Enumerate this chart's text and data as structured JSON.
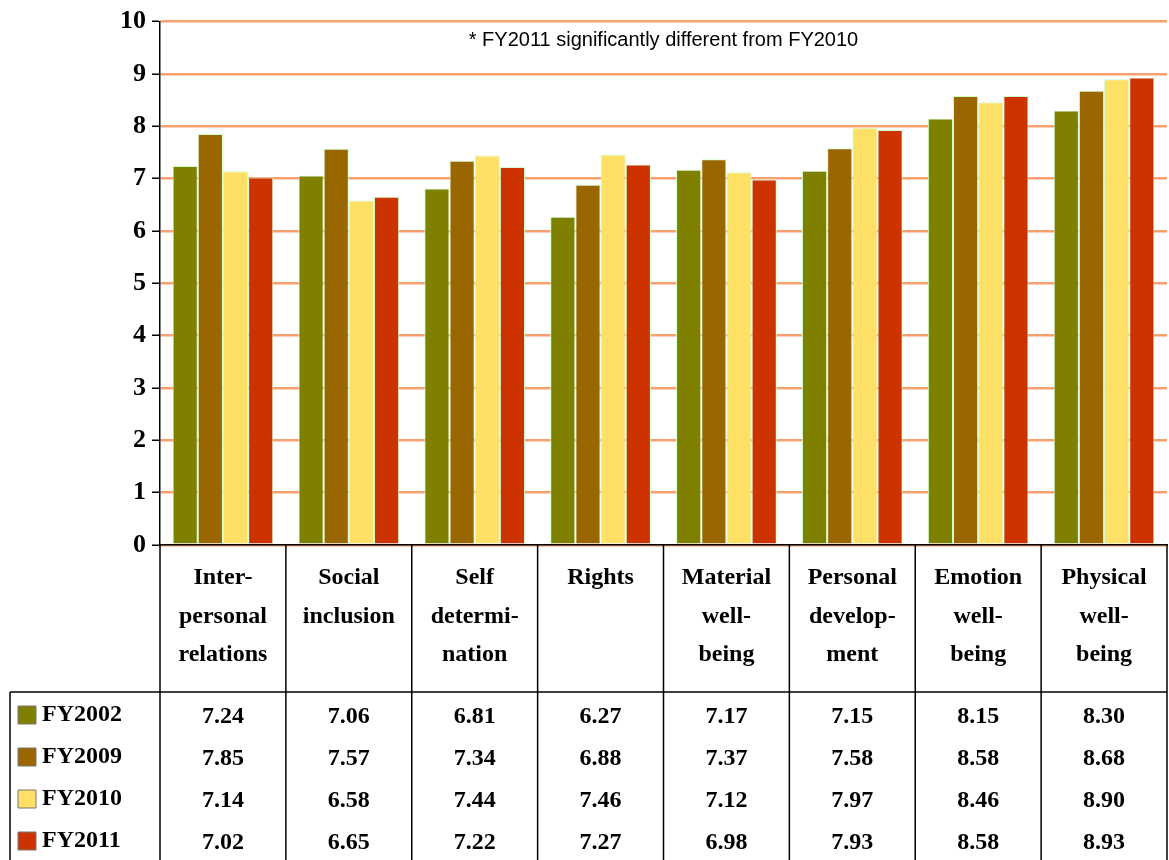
{
  "chart_data": {
    "type": "bar",
    "categories": [
      "Inter-\npersonal\nrelations",
      "Social\ninclusion",
      "Self\ndetermi-\nnation",
      "Rights",
      "Material\nwell-\nbeing",
      "Personal\ndevelop-\nment",
      "Emotion\nwell-\nbeing",
      "Physical\nwell-\nbeing"
    ],
    "series": [
      {
        "name": "FY2002",
        "color": "#808000",
        "values": [
          7.24,
          7.06,
          6.81,
          6.27,
          7.17,
          7.15,
          8.15,
          8.3
        ],
        "value_labels": [
          "7.24",
          "7.06",
          "6.81",
          "6.27",
          "7.17",
          "7.15",
          "8.15",
          "8.30"
        ]
      },
      {
        "name": "FY2009",
        "color": "#996600",
        "values": [
          7.85,
          7.57,
          7.34,
          6.88,
          7.37,
          7.58,
          8.58,
          8.68
        ],
        "value_labels": [
          "7.85",
          "7.57",
          "7.34",
          "6.88",
          "7.37",
          "7.58",
          "8.58",
          "8.68"
        ]
      },
      {
        "name": "FY2010",
        "color": "#ffe066",
        "values": [
          7.14,
          6.58,
          7.44,
          7.46,
          7.12,
          7.97,
          8.46,
          8.9
        ],
        "value_labels": [
          "7.14",
          "6.58",
          "7.44",
          "7.46",
          "7.12",
          "7.97",
          "8.46",
          "8.90"
        ]
      },
      {
        "name": "FY2011",
        "color": "#cc3300",
        "values": [
          7.02,
          6.65,
          7.22,
          7.27,
          6.98,
          7.93,
          8.58,
          8.93
        ],
        "value_labels": [
          "7.02",
          "6.65",
          "7.22",
          "7.27",
          "6.98",
          "7.93",
          "8.58",
          "8.93"
        ]
      }
    ],
    "ylim": [
      0,
      10
    ],
    "yticks": [
      0,
      1,
      2,
      3,
      4,
      5,
      6,
      7,
      8,
      9,
      10
    ],
    "grid": "y",
    "legend": "bottom",
    "annotations": [
      "* FY2011 significantly different from FY2010"
    ]
  }
}
